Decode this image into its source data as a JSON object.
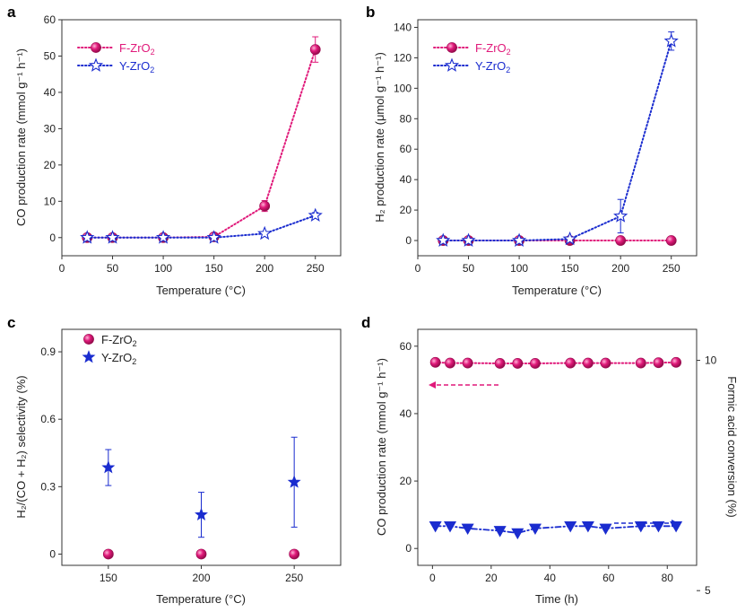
{
  "colors": {
    "f": "#e0197a",
    "y": "#1a2ccf",
    "axis": "#333333"
  },
  "chart_data": [
    {
      "panel": "a",
      "type": "line",
      "xlabel": "Temperature (°C)",
      "ylabel": "CO production rate (mmol g⁻¹ h⁻¹)",
      "xlim": [
        0,
        275
      ],
      "ylim": [
        -5,
        60
      ],
      "xticks": [
        0,
        50,
        100,
        150,
        200,
        250
      ],
      "yticks": [
        0,
        10,
        20,
        30,
        40,
        50,
        60
      ],
      "series": [
        {
          "name": "F-ZrO₂",
          "marker": "sphere",
          "color": "f",
          "x": [
            25,
            50,
            100,
            150,
            200,
            250
          ],
          "y": [
            0,
            0,
            0,
            0.2,
            8.7,
            51.8
          ],
          "err": [
            0,
            0,
            0,
            0,
            1.5,
            3.5
          ]
        },
        {
          "name": "Y-ZrO₂",
          "marker": "open-star",
          "color": "y",
          "x": [
            25,
            50,
            100,
            150,
            200,
            250
          ],
          "y": [
            0,
            0,
            0,
            0,
            1.1,
            6.1
          ],
          "err": [
            0,
            0,
            0,
            0,
            0,
            0.8
          ]
        }
      ]
    },
    {
      "panel": "b",
      "type": "line",
      "xlabel": "Temperature (°C)",
      "ylabel": "H₂ production rate (μmol g⁻¹ h⁻¹)",
      "xlim": [
        0,
        275
      ],
      "ylim": [
        -10,
        145
      ],
      "xticks": [
        0,
        50,
        100,
        150,
        200,
        250
      ],
      "yticks": [
        0,
        20,
        40,
        60,
        80,
        100,
        120,
        140
      ],
      "series": [
        {
          "name": "F-ZrO₂",
          "marker": "sphere",
          "color": "f",
          "x": [
            25,
            50,
            100,
            150,
            200,
            250
          ],
          "y": [
            0,
            0,
            0,
            0,
            0,
            0
          ],
          "err": [
            0,
            0,
            0,
            0,
            0,
            0
          ]
        },
        {
          "name": "Y-ZrO₂",
          "marker": "open-star",
          "color": "y",
          "x": [
            25,
            50,
            100,
            150,
            200,
            250
          ],
          "y": [
            0,
            0,
            0,
            1,
            16,
            131
          ],
          "err": [
            0,
            0,
            0,
            0,
            11,
            6
          ]
        }
      ]
    },
    {
      "panel": "c",
      "type": "scatter",
      "xlabel": "Temperature (°C)",
      "ylabel": "H₂/(CO + H₂) selectivity (%)",
      "xlim": [
        125,
        275
      ],
      "ylim": [
        -0.05,
        1.0
      ],
      "xticks": [
        150,
        200,
        250
      ],
      "yticks": [
        0,
        0.3,
        0.6,
        0.9
      ],
      "ytick_labels": [
        "0",
        "0.3",
        "0.6",
        "0.9"
      ],
      "series": [
        {
          "name": "F-ZrO₂",
          "marker": "sphere",
          "color": "f",
          "x": [
            150,
            200,
            250
          ],
          "y": [
            0,
            0,
            0
          ],
          "err": [
            0,
            0,
            0
          ]
        },
        {
          "name": "Y-ZrO₂",
          "marker": "star",
          "color": "y",
          "x": [
            150,
            200,
            250
          ],
          "y": [
            0.385,
            0.175,
            0.32
          ],
          "err": [
            0.08,
            0.1,
            0.2
          ]
        }
      ]
    },
    {
      "panel": "d",
      "type": "line",
      "xlabel": "Time (h)",
      "ylabel": "CO production rate (mmol g⁻¹ h⁻¹)",
      "y2label": "Formic acid conversion (%)",
      "xlim": [
        -5,
        90
      ],
      "ylim": [
        -5,
        65
      ],
      "xticks": [
        0,
        20,
        40,
        60,
        80
      ],
      "yticks": [
        0,
        20,
        40,
        60
      ],
      "y2ticks": [
        5,
        10
      ],
      "y2_at_ylim": [
        -5,
        65
      ],
      "y2_value_to_y": {
        "5": -12.5,
        "10": 55.8
      },
      "series": [
        {
          "name": "CO production rate",
          "marker": "sphere",
          "color": "f",
          "axis": "left",
          "x": [
            1,
            6,
            12,
            23,
            29,
            35,
            47,
            53,
            59,
            71,
            77,
            83
          ],
          "y": [
            55.2,
            55.0,
            55.0,
            54.9,
            54.9,
            54.9,
            55.0,
            55.0,
            55.0,
            55.0,
            55.1,
            55.2
          ]
        },
        {
          "name": "Formic acid conversion",
          "marker": "triangle-down",
          "color": "y",
          "axis": "right",
          "x": [
            1,
            6,
            12,
            23,
            29,
            35,
            47,
            53,
            59,
            71,
            77,
            83
          ],
          "y": [
            6.4,
            6.4,
            6.35,
            6.3,
            6.25,
            6.35,
            6.4,
            6.4,
            6.35,
            6.4,
            6.4,
            6.4
          ]
        }
      ]
    }
  ],
  "legend_text": {
    "f_base": "F-ZrO",
    "y_base": "Y-ZrO",
    "sub": "2"
  }
}
